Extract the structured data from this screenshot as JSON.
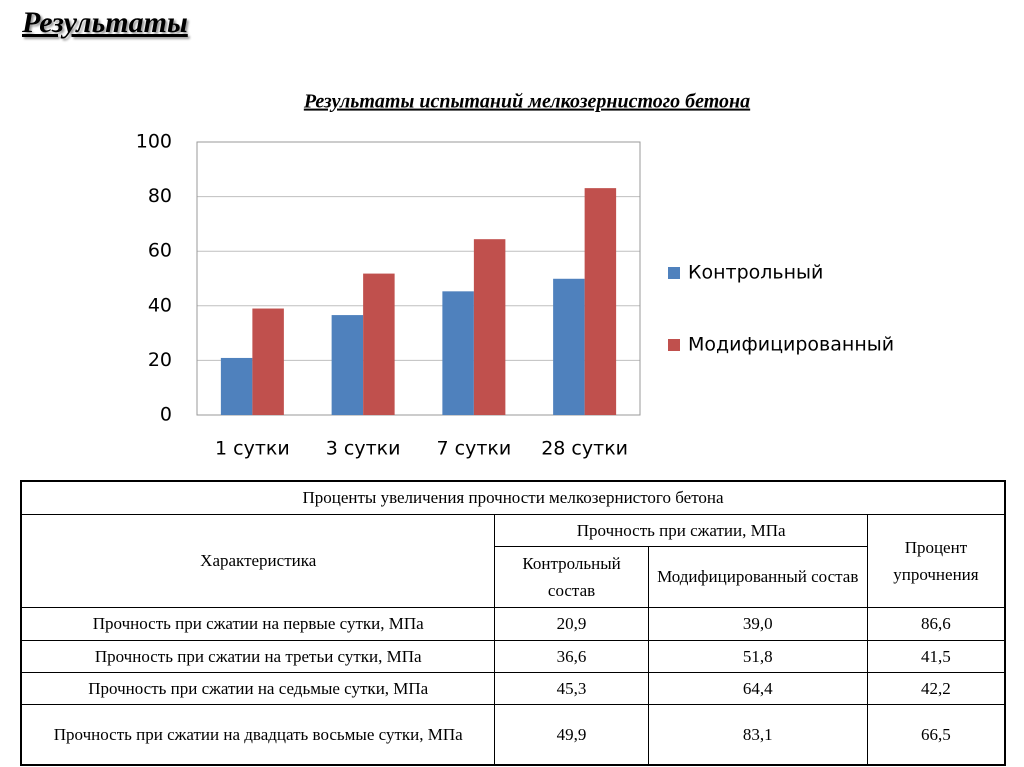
{
  "heading": "Результаты",
  "chart_data": {
    "type": "bar",
    "title": "Результаты испытаний мелкозернистого бетона",
    "categories": [
      "1 сутки",
      "3 сутки",
      "7 сутки",
      "28 сутки"
    ],
    "series": [
      {
        "name": "Контрольный",
        "color": "#4f81bd",
        "values": [
          20.9,
          36.6,
          45.3,
          49.9
        ]
      },
      {
        "name": "Модифицированный",
        "color": "#c0504d",
        "values": [
          39.0,
          51.8,
          64.4,
          83.1
        ]
      }
    ],
    "ylim": [
      0,
      100
    ],
    "yticks": [
      0,
      20,
      40,
      60,
      80,
      100
    ],
    "grid": true,
    "legend": "right"
  },
  "table": {
    "title": "Проценты увеличения прочности мелкозернистого бетона",
    "header": {
      "characteristic": "Характеристика",
      "group": "Прочность при сжатии, МПа",
      "control": "Контрольный состав",
      "modified": "Модифицированный состав",
      "percent": "Процент упрочнения"
    },
    "rows": [
      [
        "Прочность при сжатии на первые сутки, МПа",
        "20,9",
        "39,0",
        "86,6"
      ],
      [
        "Прочность при сжатии на третьи сутки, МПа",
        "36,6",
        "51,8",
        "41,5"
      ],
      [
        "Прочность при сжатии на седьмые сутки, МПа",
        "45,3",
        "64,4",
        "42,2"
      ],
      [
        "Прочность при сжатии на двадцать восьмые сутки, МПа",
        "49,9",
        "83,1",
        "66,5"
      ]
    ]
  }
}
